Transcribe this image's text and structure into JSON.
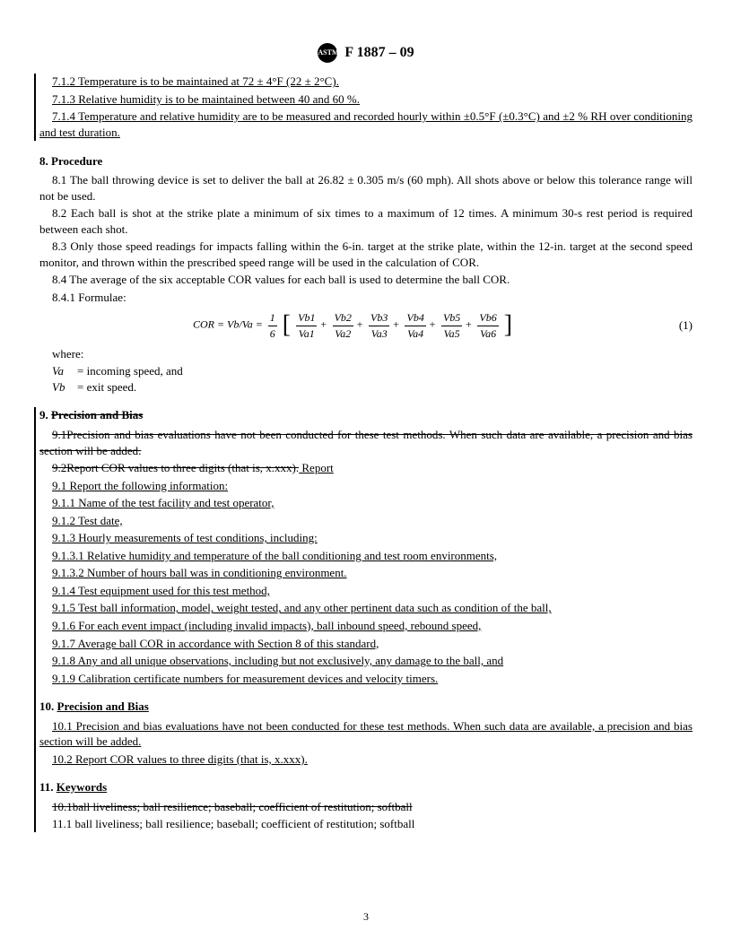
{
  "header": {
    "logo": "ASTM",
    "designation": "F 1887 – 09"
  },
  "s7": {
    "p712": "7.1.2 Temperature is to be maintained at 72 ± 4°F (22 ± 2°C).",
    "p713": "7.1.3 Relative humidity is to be maintained between 40 and 60 %.",
    "p714": "7.1.4 Temperature and relative humidity are to be measured and recorded hourly within ±0.5°F (±0.3°C) and ±2 % RH over conditioning and test duration."
  },
  "s8": {
    "title": "8.  Procedure",
    "p81": "8.1  The ball throwing device is set to deliver the ball at 26.82 ± 0.305 m/s (60 mph). All shots above or below this tolerance range will not be used.",
    "p82": "8.2  Each ball is shot at the strike plate a minimum of six times to a maximum of 12 times. A minimum 30-s rest period is required between each shot.",
    "p83": "8.3  Only those speed readings for impacts falling within the 6-in. target at the strike plate, within the 12-in. target at the second speed monitor, and thrown within the prescribed speed range will be used in the calculation of COR.",
    "p84": "8.4  The average of the six acceptable COR values for each ball is used to determine the ball COR.",
    "p841": "8.4.1 Formulae:",
    "formula": {
      "lead": "COR = Vb/Va = ",
      "sixth_num": "1",
      "sixth_den": "6",
      "t1n": "Vb1",
      "t1d": "Va1",
      "t2n": "Vb2",
      "t2d": "Va2",
      "t3n": "Vb3",
      "t3d": "Va3",
      "t4n": "Vb4",
      "t4d": "Va4",
      "t5n": "Vb5",
      "t5d": "Va5",
      "t6n": "Vb6",
      "t6d": "Va6",
      "num": "(1)"
    },
    "where": "where:",
    "whereVa": "=  incoming speed, and",
    "whereVb": "=  exit speed.",
    "va": "Va",
    "vb": "Vb"
  },
  "s9": {
    "title_num": "9.  ",
    "title_txt": "Precision and Bias",
    "p91a": "9.1Precision and bias evaluations have not been conducted for these test methods. When such data are available, a precision and bias section will be added.",
    "p92a": "9.2Report COR values to three digits (that is, x.xxx).",
    "report": " Report",
    "p91": "9.1  Report the following information:",
    "p911": "9.1.1  Name of the test facility and test operator,",
    "p912": "9.1.2  Test date,",
    "p913": "9.1.3  Hourly measurements of test conditions, including:",
    "p9131": "9.1.3.1  Relative humidity and temperature of the ball conditioning and test room environments,",
    "p9132": "9.1.3.2  Number of hours ball was in conditioning environment.",
    "p914": "9.1.4  Test equipment used for this test method,",
    "p915": "9.1.5  Test ball information, model, weight tested, and any other pertinent data such as condition of the ball,",
    "p916": "9.1.6  For each event impact (including invalid impacts), ball inbound speed, rebound speed,",
    "p917": "9.1.7  Average ball COR in accordance with Section 8 of this standard,",
    "p918": "9.1.8  Any and all unique observations, including but not exclusively, any damage to the ball, and",
    "p919": "9.1.9  Calibration certificate numbers for measurement devices and velocity timers."
  },
  "s10": {
    "title": "10.  ",
    "title_txt": "Precision and Bias",
    "p101": "10.1  Precision and bias evaluations have not been conducted for these test methods. When such data are available, a precision and bias section will be added.",
    "p102": "10.2  Report COR values to three digits (that is, x.xxx)."
  },
  "s11": {
    "title": "11.  ",
    "title_txt": "Keywords",
    "p101s": "10.1ball liveliness; ball resilience; baseball; coefficient of restitution; softball",
    "p111": "11.1  ball liveliness; ball resilience; baseball; coefficient of restitution; softball"
  },
  "page": "3"
}
